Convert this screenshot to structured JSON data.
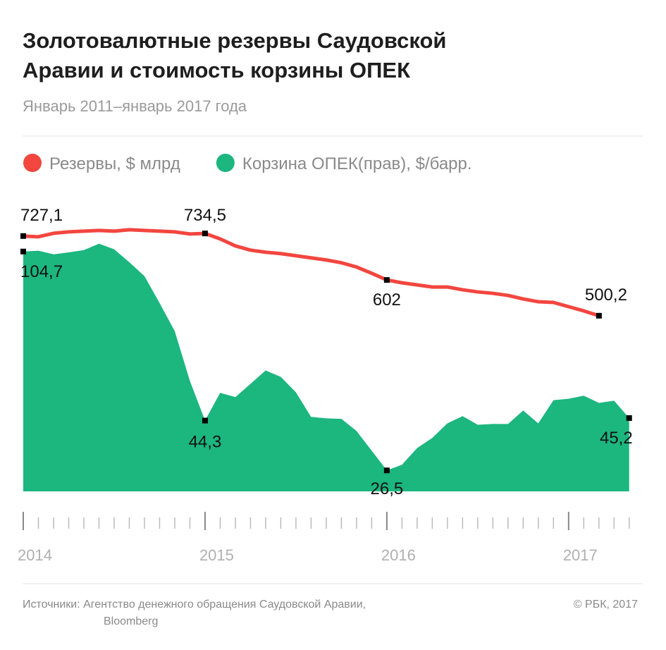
{
  "chart_data": {
    "type": "line",
    "title": [
      "Золотовалютные резервы Саудовской",
      "Аравии и стоимость корзины ОПЕК"
    ],
    "subtitle": "Январь 2011–январь 2017 года",
    "xlim": [
      2014,
      2017.4
    ],
    "xticks": [
      2014,
      2015,
      2016,
      2017
    ],
    "ylim": [
      0,
      797
    ],
    "y2lim": [
      19,
      119
    ],
    "series": [
      {
        "name": "Резервы, $ млрд",
        "color": "#f2463f",
        "type": "line",
        "x": [
          2014,
          2014.083,
          2014.167,
          2014.25,
          2014.333,
          2014.417,
          2014.5,
          2014.583,
          2014.667,
          2014.75,
          2014.833,
          2014.917,
          2015,
          2015.083,
          2015.167,
          2015.25,
          2015.333,
          2015.417,
          2015.5,
          2015.583,
          2015.667,
          2015.75,
          2015.833,
          2015.917,
          2016,
          2016.083,
          2016.167,
          2016.25,
          2016.333,
          2016.417,
          2016.5,
          2016.583,
          2016.667,
          2016.75,
          2016.833,
          2016.917,
          2017,
          2017.083,
          2017.167
        ],
        "values": [
          727.1,
          725,
          735,
          739,
          741,
          743,
          741,
          745,
          743,
          741,
          739,
          733,
          734.5,
          719,
          699,
          687,
          681,
          677,
          671,
          665,
          659,
          651,
          639,
          621,
          602,
          594,
          588,
          582,
          582,
          574,
          568,
          564,
          558,
          548,
          540,
          538,
          526,
          514,
          500.2
        ],
        "value_labels": [
          "727,1",
          null,
          null,
          null,
          null,
          null,
          null,
          null,
          null,
          null,
          null,
          null,
          "734,5",
          null,
          null,
          null,
          null,
          null,
          null,
          null,
          null,
          null,
          null,
          null,
          "602",
          null,
          null,
          null,
          null,
          null,
          null,
          null,
          null,
          null,
          null,
          null,
          null,
          null,
          "500,2"
        ]
      },
      {
        "name": "Корзина ОПЕК(прав), $/барр.",
        "color": "#1cb67f",
        "type": "area",
        "axis": "y2",
        "x": [
          2014,
          2014.083,
          2014.167,
          2014.25,
          2014.333,
          2014.417,
          2014.5,
          2014.583,
          2014.667,
          2014.75,
          2014.833,
          2014.917,
          2015,
          2015.083,
          2015.167,
          2015.25,
          2015.333,
          2015.417,
          2015.5,
          2015.583,
          2015.667,
          2015.75,
          2015.833,
          2015.917,
          2016,
          2016.083,
          2016.167,
          2016.25,
          2016.333,
          2016.417,
          2016.5,
          2016.583,
          2016.667,
          2016.75,
          2016.833,
          2016.917,
          2017,
          2017.083,
          2017.167,
          2017.25,
          2017.333
        ],
        "values": [
          104.7,
          105,
          103.7,
          104.4,
          105.2,
          107.5,
          105.5,
          100.9,
          95.9,
          86.3,
          76.3,
          58.4,
          44.3,
          54.2,
          52.7,
          57.4,
          62.2,
          59.9,
          54.4,
          45.6,
          45.1,
          44.9,
          40.6,
          33.5,
          26.5,
          28.5,
          34.5,
          38.1,
          43.3,
          45.9,
          42.8,
          43.1,
          43.1,
          47.9,
          43.3,
          51.6,
          52.1,
          53.2,
          50.6,
          51.4,
          45.2
        ],
        "value_labels": [
          "104,7",
          null,
          null,
          null,
          null,
          null,
          null,
          null,
          null,
          null,
          null,
          null,
          "44,3",
          null,
          null,
          null,
          null,
          null,
          null,
          null,
          null,
          null,
          null,
          null,
          "26,5",
          null,
          null,
          null,
          null,
          null,
          null,
          null,
          null,
          null,
          null,
          null,
          null,
          null,
          null,
          null,
          "45,2"
        ]
      }
    ],
    "source": [
      "Источники: Агентство денежного обращения Саудовской Аравии,",
      "Bloomberg"
    ],
    "copyright": "© РБК, 2017"
  }
}
